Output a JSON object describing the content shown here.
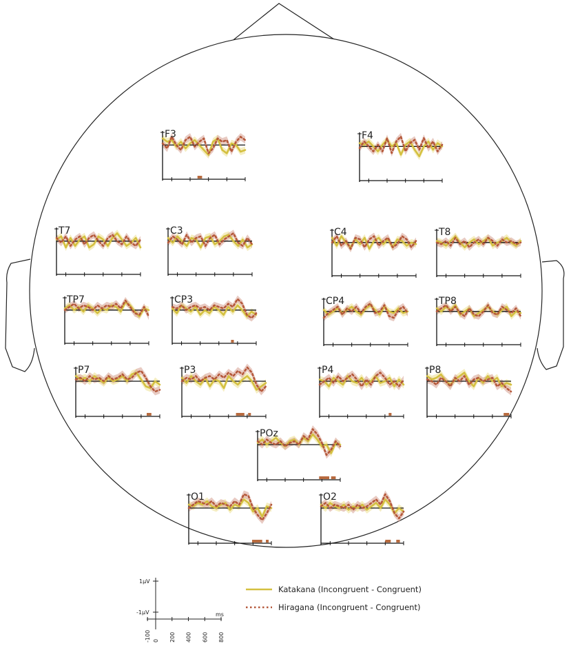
{
  "chart_data": {
    "type": "line",
    "layout": "scalp-topographic",
    "x_unit": "ms",
    "y_unit": "µV",
    "xlim": [
      -100,
      800
    ],
    "ylim": [
      -1,
      1
    ],
    "scale_legend": {
      "y_ticks": [
        "1µV",
        "-1µV"
      ],
      "x_ticks": [
        "-100",
        "0",
        "200",
        "400",
        "600",
        "800"
      ],
      "x_unit_label": "ms"
    },
    "series": [
      {
        "key": "katakana",
        "name": "Katakana (Incongruent - Congruent)",
        "line_color": "#d4c040",
        "band_color": "#efe39a",
        "style": "solid"
      },
      {
        "key": "hiragana",
        "name": "Hiragana (Incongruent - Congruent)",
        "line_color": "#b5583a",
        "band_color": "#d9a79a",
        "style": "dotted"
      }
    ],
    "x": [
      -100,
      -50,
      0,
      50,
      100,
      150,
      200,
      250,
      300,
      350,
      400,
      450,
      500,
      550,
      600,
      650,
      700,
      750,
      800
    ],
    "electrodes": [
      {
        "label": "F3",
        "katakana": [
          0.4,
          0.2,
          0.3,
          -0.1,
          0.2,
          -0.2,
          0.1,
          0.3,
          0.0,
          -0.3,
          -0.6,
          0.2,
          0.4,
          -0.3,
          -0.5,
          0.1,
          0.0,
          -0.4,
          -0.3
        ],
        "hiragana": [
          0.1,
          -0.2,
          0.5,
          0.0,
          -0.3,
          0.3,
          0.5,
          -0.1,
          0.2,
          0.4,
          -0.5,
          -0.2,
          0.4,
          0.2,
          0.3,
          -0.4,
          0.2,
          0.5,
          0.3
        ],
        "sig": [
          [
            280,
            330
          ]
        ]
      },
      {
        "label": "F4",
        "katakana": [
          0.2,
          0.1,
          0.3,
          0.0,
          -0.3,
          0.1,
          0.4,
          0.0,
          0.2,
          -0.5,
          0.1,
          0.3,
          -0.2,
          -0.6,
          0.0,
          0.3,
          -0.2,
          0.2,
          0.0
        ],
        "hiragana": [
          -0.1,
          0.3,
          0.0,
          -0.3,
          0.1,
          -0.3,
          0.5,
          -0.4,
          0.3,
          0.6,
          -0.3,
          0.2,
          0.4,
          -0.2,
          0.5,
          -0.1,
          0.3,
          -0.3,
          0.1
        ],
        "sig": []
      },
      {
        "label": "T7",
        "katakana": [
          0.1,
          0.3,
          -0.4,
          0.2,
          -0.3,
          0.1,
          0.3,
          -0.4,
          -0.2,
          0.3,
          0.1,
          -0.3,
          0.2,
          0.5,
          0.1,
          -0.3,
          -0.1,
          0.2,
          -0.4
        ],
        "hiragana": [
          0.2,
          -0.1,
          0.3,
          -0.3,
          0.1,
          0.3,
          -0.2,
          0.2,
          0.4,
          0.0,
          -0.3,
          0.2,
          0.4,
          0.0,
          -0.2,
          0.3,
          -0.1,
          -0.3,
          0.1
        ],
        "sig": []
      },
      {
        "label": "C3",
        "katakana": [
          0.2,
          -0.1,
          0.3,
          0.0,
          -0.3,
          0.2,
          0.1,
          -0.4,
          0.2,
          0.3,
          -0.2,
          0.0,
          0.3,
          0.4,
          0.0,
          -0.3,
          0.1,
          -0.4,
          -0.2
        ],
        "hiragana": [
          -0.1,
          0.3,
          0.1,
          -0.2,
          0.4,
          -0.1,
          0.2,
          0.3,
          -0.3,
          0.2,
          0.4,
          -0.2,
          0.1,
          0.3,
          0.5,
          -0.1,
          -0.3,
          0.2,
          -0.2
        ],
        "sig": []
      },
      {
        "label": "C4",
        "katakana": [
          0.3,
          -0.2,
          0.4,
          0.0,
          -0.3,
          0.2,
          -0.1,
          0.3,
          -0.4,
          0.1,
          0.3,
          -0.1,
          0.2,
          -0.3,
          0.2,
          0.1,
          -0.2,
          0.0,
          -0.1
        ],
        "hiragana": [
          0.0,
          0.4,
          -0.2,
          0.1,
          -0.4,
          0.3,
          0.2,
          -0.3,
          0.2,
          0.4,
          -0.2,
          0.1,
          0.3,
          -0.3,
          -0.1,
          0.4,
          0.2,
          -0.3,
          0.1
        ],
        "sig": []
      },
      {
        "label": "T8",
        "katakana": [
          0.1,
          0.0,
          -0.2,
          0.1,
          0.4,
          0.0,
          -0.3,
          0.0,
          0.2,
          -0.1,
          0.1,
          0.3,
          -0.2,
          0.0,
          0.1,
          0.3,
          0.0,
          -0.2,
          0.1
        ],
        "hiragana": [
          0.0,
          -0.1,
          0.1,
          -0.2,
          0.3,
          -0.1,
          0.1,
          -0.3,
          0.0,
          0.2,
          -0.1,
          0.3,
          0.1,
          -0.2,
          0.2,
          0.0,
          0.1,
          -0.1,
          0.0
        ],
        "sig": []
      },
      {
        "label": "TP7",
        "katakana": [
          0.1,
          0.3,
          0.0,
          0.2,
          -0.1,
          0.3,
          0.1,
          -0.2,
          0.1,
          0.0,
          0.3,
          0.2,
          -0.1,
          0.5,
          0.3,
          -0.1,
          -0.4,
          0.1,
          0.0
        ],
        "hiragana": [
          0.0,
          0.2,
          0.4,
          0.1,
          0.3,
          0.2,
          0.0,
          0.3,
          0.1,
          0.3,
          0.2,
          0.4,
          0.1,
          0.6,
          0.2,
          -0.2,
          -0.3,
          0.2,
          -0.4
        ],
        "sig": []
      },
      {
        "label": "CP3",
        "katakana": [
          0.1,
          -0.2,
          0.3,
          0.1,
          -0.1,
          0.2,
          -0.3,
          0.0,
          -0.2,
          0.2,
          0.0,
          -0.3,
          0.2,
          -0.1,
          0.3,
          0.0,
          -0.4,
          -0.1,
          -0.3
        ],
        "hiragana": [
          0.2,
          0.1,
          0.3,
          0.0,
          0.2,
          0.3,
          0.1,
          0.2,
          0.0,
          0.3,
          0.2,
          0.1,
          0.4,
          0.2,
          0.7,
          0.4,
          -0.3,
          -0.5,
          -0.2
        ],
        "sig": [
          [
            530,
            560
          ]
        ]
      },
      {
        "label": "CP4",
        "katakana": [
          0.1,
          -0.2,
          0.0,
          0.2,
          -0.1,
          0.1,
          0.3,
          0.0,
          -0.2,
          0.2,
          0.4,
          0.1,
          -0.2,
          0.3,
          0.0,
          -0.1,
          0.2,
          -0.1,
          0.0
        ],
        "hiragana": [
          -0.4,
          -0.1,
          0.1,
          0.3,
          -0.2,
          0.2,
          0.0,
          0.3,
          -0.1,
          0.3,
          0.5,
          -0.1,
          0.0,
          0.4,
          -0.3,
          -0.4,
          0.1,
          0.3,
          -0.1
        ],
        "sig": []
      },
      {
        "label": "TP8",
        "katakana": [
          0.2,
          0.0,
          0.3,
          0.1,
          0.4,
          -0.2,
          0.0,
          0.2,
          -0.3,
          -0.1,
          0.1,
          0.3,
          0.0,
          -0.2,
          0.1,
          0.3,
          -0.3,
          0.0,
          -0.1
        ],
        "hiragana": [
          0.0,
          0.2,
          0.4,
          0.0,
          0.3,
          -0.1,
          -0.3,
          0.2,
          -0.2,
          -0.3,
          0.0,
          0.4,
          -0.1,
          -0.2,
          0.3,
          0.1,
          -0.1,
          0.2,
          -0.3
        ],
        "sig": []
      },
      {
        "label": "P7",
        "katakana": [
          0.3,
          0.1,
          0.2,
          0.0,
          0.3,
          0.1,
          -0.1,
          0.2,
          0.0,
          0.1,
          0.3,
          0.0,
          0.4,
          0.5,
          0.1,
          -0.3,
          -0.4,
          0.0,
          -0.2
        ],
        "hiragana": [
          0.1,
          0.2,
          0.0,
          0.3,
          0.1,
          0.2,
          0.0,
          0.3,
          0.1,
          0.2,
          0.4,
          0.1,
          0.2,
          0.5,
          0.6,
          0.2,
          -0.3,
          -0.6,
          -0.5
        ],
        "sig": [
          [
            660,
            710
          ]
        ]
      },
      {
        "label": "P3",
        "katakana": [
          0.2,
          -0.1,
          0.3,
          0.0,
          -0.2,
          0.2,
          -0.3,
          0.1,
          0.0,
          -0.4,
          0.3,
          0.0,
          -0.2,
          0.1,
          0.3,
          0.0,
          -0.5,
          -0.3,
          -0.1
        ],
        "hiragana": [
          0.0,
          0.2,
          0.1,
          0.3,
          0.0,
          0.2,
          0.3,
          0.1,
          0.4,
          0.2,
          0.5,
          0.3,
          0.6,
          0.4,
          0.8,
          0.5,
          -0.2,
          -0.6,
          -0.3
        ],
        "sig": [
          [
            480,
            570
          ],
          [
            610,
            640
          ]
        ]
      },
      {
        "label": "P4",
        "katakana": [
          0.1,
          0.0,
          -0.3,
          0.2,
          0.0,
          -0.2,
          0.3,
          0.0,
          -0.1,
          0.2,
          -0.2,
          0.0,
          0.3,
          -0.1,
          0.0,
          0.2,
          -0.3,
          0.1,
          -0.2
        ],
        "hiragana": [
          -0.2,
          0.0,
          0.2,
          -0.1,
          0.3,
          0.0,
          0.2,
          0.4,
          0.1,
          -0.3,
          0.1,
          -0.2,
          0.3,
          0.5,
          0.2,
          -0.2,
          0.0,
          -0.3,
          0.1
        ],
        "sig": [
          [
            640,
            670
          ]
        ]
      },
      {
        "label": "P8",
        "katakana": [
          0.3,
          0.1,
          0.2,
          0.4,
          0.0,
          -0.2,
          0.1,
          0.3,
          0.5,
          0.0,
          -0.3,
          0.2,
          -0.1,
          0.3,
          0.0,
          0.2,
          -0.3,
          -0.1,
          -0.2
        ],
        "hiragana": [
          0.1,
          0.0,
          -0.2,
          0.2,
          0.0,
          -0.3,
          0.2,
          0.0,
          0.3,
          -0.2,
          0.1,
          0.2,
          0.0,
          0.1,
          0.2,
          -0.3,
          -0.1,
          -0.4,
          -0.6
        ],
        "sig": [
          [
            720,
            780
          ]
        ]
      },
      {
        "label": "POz",
        "katakana": [
          0.1,
          0.3,
          0.0,
          0.2,
          0.4,
          0.1,
          -0.1,
          0.2,
          0.3,
          0.0,
          0.4,
          0.2,
          0.6,
          0.3,
          -0.1,
          0.0,
          -0.5,
          0.1,
          0.0
        ],
        "hiragana": [
          0.2,
          0.0,
          0.3,
          0.1,
          0.0,
          0.2,
          -0.1,
          0.1,
          0.2,
          0.0,
          0.5,
          0.3,
          0.9,
          0.6,
          0.1,
          -0.6,
          -0.3,
          0.2,
          -0.1
        ],
        "sig": [
          [
            570,
            680
          ],
          [
            700,
            750
          ]
        ]
      },
      {
        "label": "O1",
        "katakana": [
          0.2,
          0.1,
          0.3,
          0.2,
          0.4,
          0.1,
          0.0,
          0.2,
          0.3,
          -0.1,
          0.2,
          0.1,
          0.5,
          0.3,
          -0.2,
          0.0,
          -0.5,
          0.1,
          0.0
        ],
        "hiragana": [
          0.0,
          0.2,
          0.4,
          0.3,
          0.2,
          0.4,
          0.1,
          0.3,
          0.2,
          0.1,
          0.4,
          0.2,
          0.8,
          0.7,
          0.0,
          -0.4,
          -0.7,
          -0.3,
          0.2
        ],
        "sig": [
          [
            590,
            700
          ],
          [
            740,
            770
          ]
        ]
      },
      {
        "label": "O2",
        "katakana": [
          0.2,
          0.0,
          0.3,
          0.1,
          0.0,
          0.2,
          -0.1,
          0.1,
          0.0,
          0.2,
          -0.1,
          0.1,
          0.3,
          0.0,
          0.5,
          0.2,
          -0.3,
          0.0,
          -0.2
        ],
        "hiragana": [
          0.1,
          0.3,
          0.0,
          0.2,
          0.1,
          0.0,
          0.2,
          -0.1,
          0.2,
          0.0,
          0.1,
          0.3,
          0.5,
          0.2,
          0.8,
          0.4,
          -0.3,
          -0.6,
          -0.2
        ],
        "sig": [
          [
            600,
            660
          ],
          [
            720,
            760
          ]
        ]
      }
    ]
  }
}
